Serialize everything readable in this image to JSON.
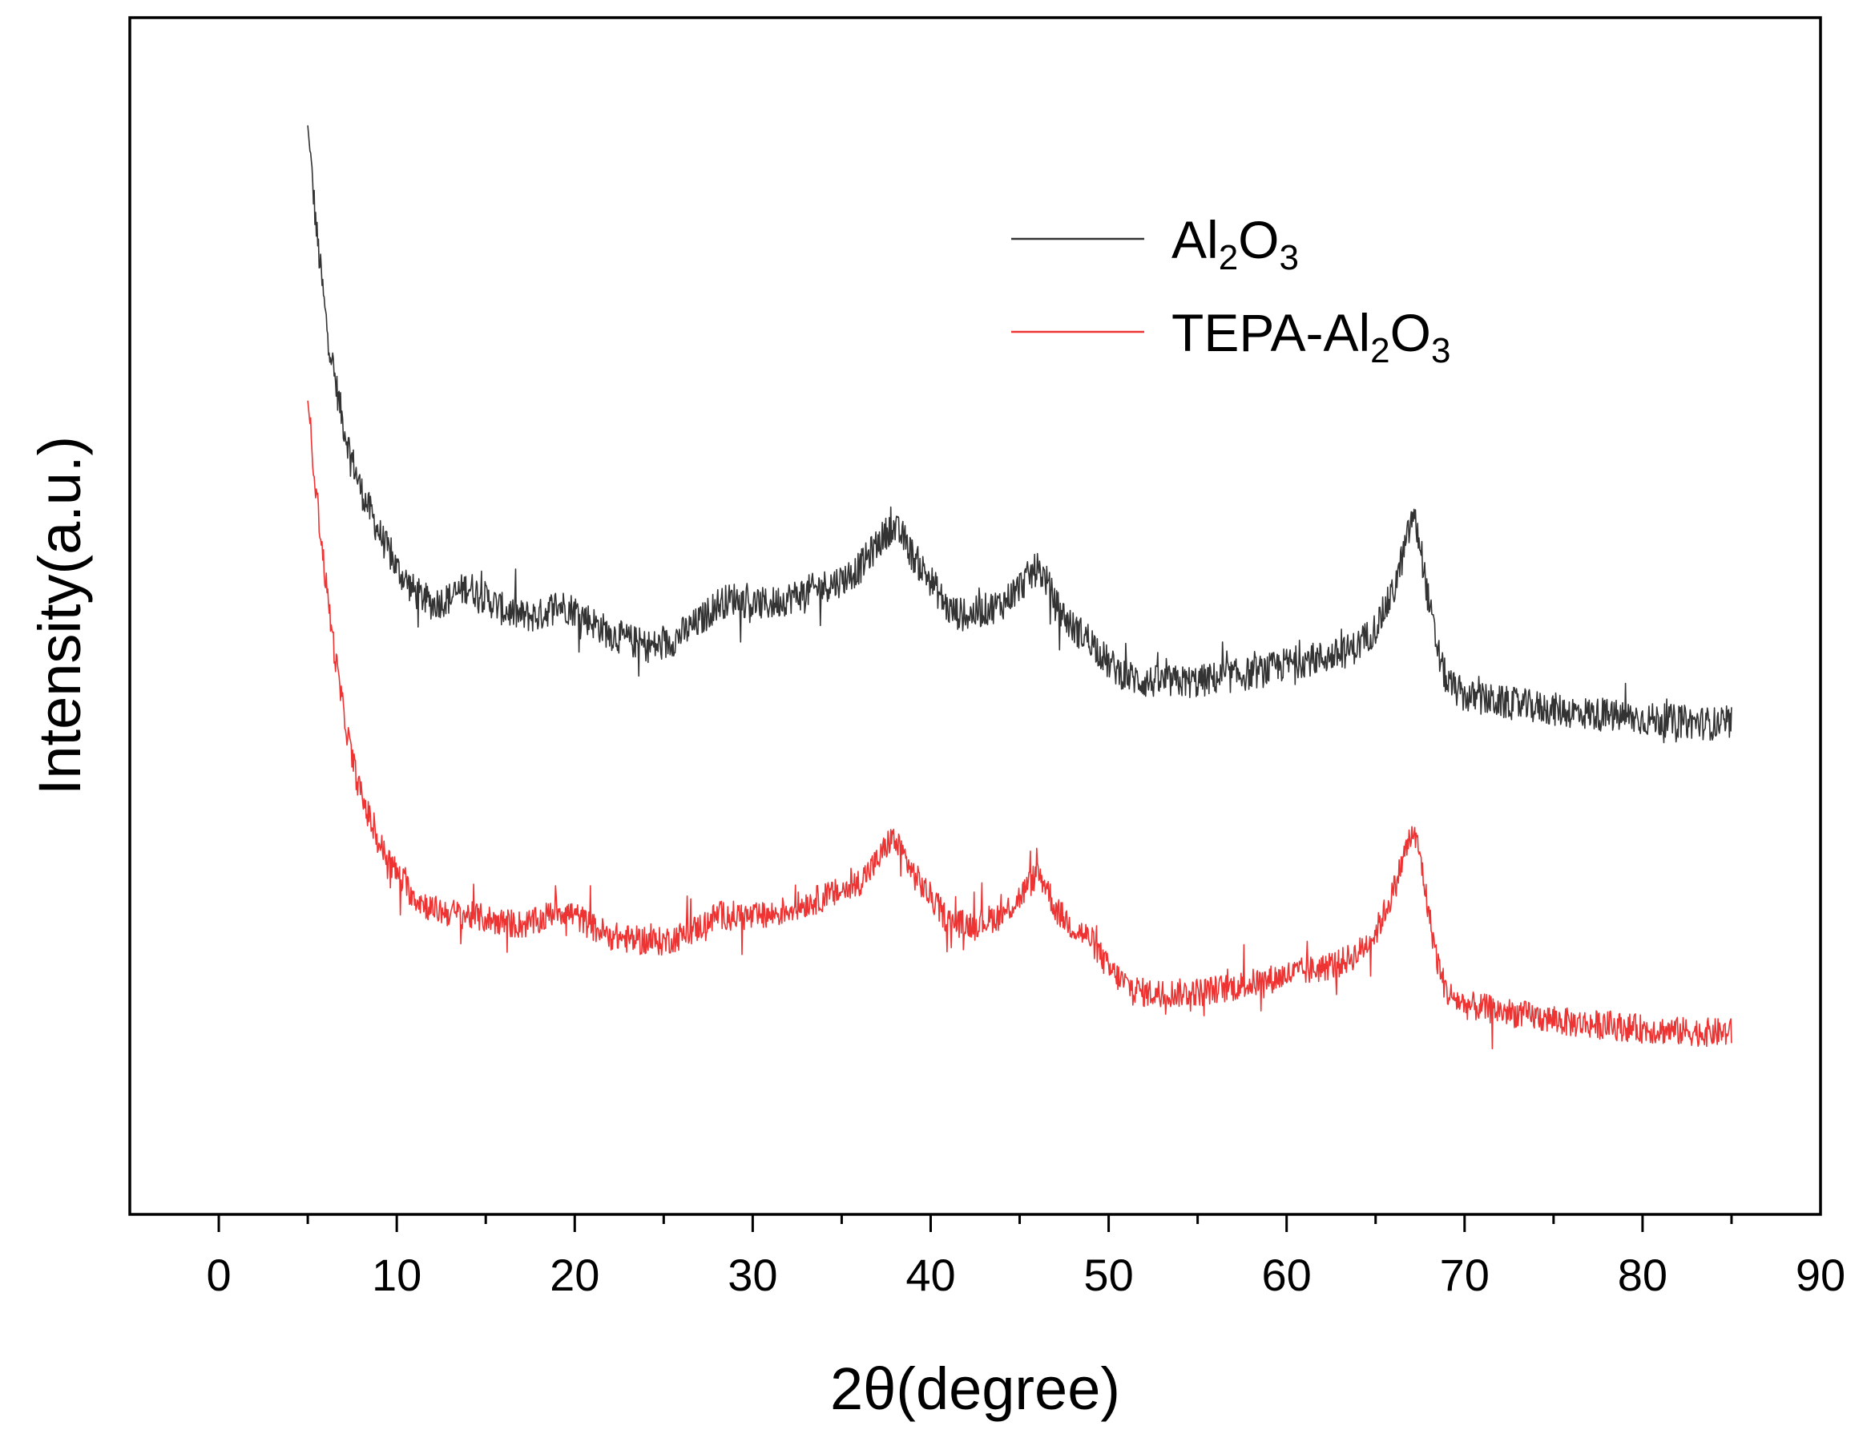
{
  "chart_data": {
    "type": "line",
    "title": "",
    "xlabel": "2θ(degree)",
    "ylabel": "Intensity(a.u.)",
    "xlim": [
      -5,
      90
    ],
    "ylim": [
      0,
      100
    ],
    "xticks": [
      0,
      10,
      20,
      30,
      40,
      50,
      60,
      70,
      80,
      90
    ],
    "xtick_labels": [
      "0",
      "10",
      "20",
      "30",
      "40",
      "50",
      "60",
      "70",
      "80",
      "90"
    ],
    "yticks_shown": false,
    "grid": false,
    "legend_position": "top-right",
    "series": [
      {
        "name": "Al2O3",
        "legend": {
          "main": "Al",
          "sub1": "2",
          "mid": "O",
          "sub2": "3"
        },
        "color": "#333333",
        "noise": 1.4,
        "points": [
          [
            5.0,
            91
          ],
          [
            5.5,
            82
          ],
          [
            6,
            75
          ],
          [
            6.5,
            70
          ],
          [
            7,
            66
          ],
          [
            7.5,
            63
          ],
          [
            8,
            60.5
          ],
          [
            9,
            57
          ],
          [
            10,
            54
          ],
          [
            11,
            52
          ],
          [
            12,
            51
          ],
          [
            13,
            51.5
          ],
          [
            14,
            52.5
          ],
          [
            15,
            51.5
          ],
          [
            16,
            50.5
          ],
          [
            17,
            50
          ],
          [
            18,
            50
          ],
          [
            19,
            51
          ],
          [
            20,
            50.5
          ],
          [
            21,
            49.5
          ],
          [
            22,
            48.5
          ],
          [
            23,
            48
          ],
          [
            24,
            47.5
          ],
          [
            25,
            47.5
          ],
          [
            26,
            48.5
          ],
          [
            27,
            49.5
          ],
          [
            28,
            51
          ],
          [
            29,
            51.5
          ],
          [
            30,
            51
          ],
          [
            31,
            51
          ],
          [
            32,
            51.5
          ],
          [
            33,
            52
          ],
          [
            34,
            52.5
          ],
          [
            35,
            53
          ],
          [
            36,
            54
          ],
          [
            37,
            56
          ],
          [
            37.8,
            57.5
          ],
          [
            38.5,
            56.5
          ],
          [
            39,
            55
          ],
          [
            40,
            53
          ],
          [
            41,
            50.5
          ],
          [
            42,
            50
          ],
          [
            43,
            50.5
          ],
          [
            44,
            51
          ],
          [
            45,
            52.5
          ],
          [
            46,
            54
          ],
          [
            46.5,
            53
          ],
          [
            47,
            51
          ],
          [
            48,
            49
          ],
          [
            49,
            48
          ],
          [
            50,
            46
          ],
          [
            51,
            45
          ],
          [
            52,
            44.5
          ],
          [
            53,
            44.5
          ],
          [
            54,
            44.5
          ],
          [
            55,
            44.5
          ],
          [
            56,
            44.8
          ],
          [
            57,
            45
          ],
          [
            58,
            45.2
          ],
          [
            59,
            45.5
          ],
          [
            60,
            46
          ],
          [
            61,
            46.3
          ],
          [
            62,
            46.5
          ],
          [
            63,
            46.8
          ],
          [
            64,
            47.5
          ],
          [
            65,
            49
          ],
          [
            66,
            52
          ],
          [
            66.7,
            56
          ],
          [
            67.1,
            58.5
          ],
          [
            67.5,
            56
          ],
          [
            68,
            51
          ],
          [
            68.5,
            47
          ],
          [
            69,
            44.5
          ],
          [
            70,
            43.3
          ],
          [
            72,
            42.8
          ],
          [
            74,
            42.4
          ],
          [
            76,
            42
          ],
          [
            78,
            41.7
          ],
          [
            80,
            41.4
          ],
          [
            82,
            41.2
          ],
          [
            84,
            41
          ],
          [
            85,
            41
          ]
        ]
      },
      {
        "name": "TEPA-Al2O3",
        "legend": {
          "main": "TEPA-Al",
          "sub1": "2",
          "mid": "O",
          "sub2": "3"
        },
        "color": "#ee3333",
        "noise": 1.2,
        "points": [
          [
            5.0,
            68
          ],
          [
            5.5,
            60
          ],
          [
            6,
            53
          ],
          [
            6.5,
            47
          ],
          [
            7,
            42
          ],
          [
            7.5,
            38
          ],
          [
            8,
            35
          ],
          [
            9,
            31
          ],
          [
            10,
            28.5
          ],
          [
            11,
            26.5
          ],
          [
            12,
            25.5
          ],
          [
            13,
            25.2
          ],
          [
            14,
            25
          ],
          [
            15,
            24.7
          ],
          [
            16,
            24.4
          ],
          [
            17,
            24.2
          ],
          [
            18,
            24.5
          ],
          [
            19,
            25.5
          ],
          [
            20,
            25
          ],
          [
            21,
            24
          ],
          [
            22,
            23.3
          ],
          [
            23,
            23
          ],
          [
            24,
            22.8
          ],
          [
            25,
            22.8
          ],
          [
            26,
            23.3
          ],
          [
            27,
            24
          ],
          [
            28,
            25
          ],
          [
            29,
            25
          ],
          [
            30,
            24.8
          ],
          [
            31,
            25
          ],
          [
            32,
            25.5
          ],
          [
            33,
            26
          ],
          [
            34,
            26.5
          ],
          [
            35,
            27
          ],
          [
            36,
            27.8
          ],
          [
            37,
            29.5
          ],
          [
            37.8,
            31.5
          ],
          [
            38.5,
            30
          ],
          [
            39,
            28.5
          ],
          [
            40,
            26.5
          ],
          [
            41,
            24.5
          ],
          [
            42,
            24.2
          ],
          [
            43,
            24.5
          ],
          [
            44,
            25
          ],
          [
            45,
            26.5
          ],
          [
            46,
            28.5
          ],
          [
            46.5,
            27.5
          ],
          [
            47,
            25.5
          ],
          [
            48,
            24
          ],
          [
            49,
            23
          ],
          [
            50,
            20.5
          ],
          [
            51,
            19.2
          ],
          [
            52,
            18.5
          ],
          [
            53,
            18.5
          ],
          [
            54,
            18.5
          ],
          [
            55,
            18.6
          ],
          [
            56,
            18.8
          ],
          [
            57,
            19
          ],
          [
            58,
            19.3
          ],
          [
            59,
            19.6
          ],
          [
            60,
            20
          ],
          [
            61,
            20.3
          ],
          [
            62,
            20.6
          ],
          [
            63,
            21
          ],
          [
            64,
            21.8
          ],
          [
            65,
            23.5
          ],
          [
            66,
            27
          ],
          [
            66.7,
            30.5
          ],
          [
            67.1,
            32
          ],
          [
            67.5,
            30
          ],
          [
            68,
            25
          ],
          [
            68.5,
            21
          ],
          [
            69,
            18.5
          ],
          [
            70,
            17.5
          ],
          [
            72,
            17
          ],
          [
            74,
            16.5
          ],
          [
            76,
            16
          ],
          [
            78,
            15.8
          ],
          [
            80,
            15.5
          ],
          [
            82,
            15.3
          ],
          [
            84,
            15.2
          ],
          [
            85,
            15.2
          ]
        ]
      }
    ]
  }
}
